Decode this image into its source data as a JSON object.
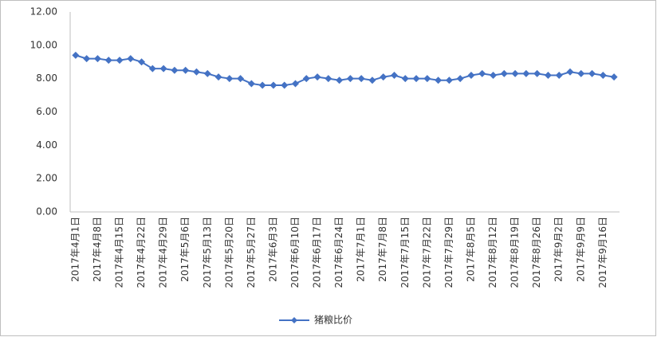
{
  "chart_data": {
    "type": "line",
    "categories": [
      "2017年4月1日",
      null,
      "2017年4月8日",
      null,
      "2017年4月15日",
      null,
      "2017年4月22日",
      null,
      "2017年4月29日",
      null,
      "2017年5月6日",
      null,
      "2017年5月13日",
      null,
      "2017年5月20日",
      null,
      "2017年5月27日",
      null,
      "2017年6月3日",
      null,
      "2017年6月10日",
      null,
      "2017年6月17日",
      null,
      "2017年6月24日",
      null,
      "2017年7月1日",
      null,
      "2017年7月8日",
      null,
      "2017年7月15日",
      null,
      "2017年7月22日",
      null,
      "2017年7月29日",
      null,
      "2017年8月5日",
      null,
      "2017年8月12日",
      null,
      "2017年8月19日",
      null,
      "2017年8月26日",
      null,
      "2017年9月2日",
      null,
      "2017年9月9日",
      null,
      "2017年9月16日",
      null
    ],
    "series": [
      {
        "name": "猪粮比价",
        "color": "#4472c4",
        "values": [
          9.4,
          9.2,
          9.2,
          9.1,
          9.1,
          9.2,
          9.0,
          8.6,
          8.6,
          8.5,
          8.5,
          8.4,
          8.3,
          8.1,
          8.0,
          8.0,
          7.7,
          7.6,
          7.6,
          7.6,
          7.7,
          8.0,
          8.1,
          8.0,
          7.9,
          8.0,
          8.0,
          7.9,
          8.1,
          8.2,
          8.0,
          8.0,
          8.0,
          7.9,
          7.9,
          8.0,
          8.2,
          8.3,
          8.2,
          8.3,
          8.3,
          8.3,
          8.3,
          8.2,
          8.2,
          8.4,
          8.3,
          8.3,
          8.2,
          8.1
        ]
      }
    ],
    "ylim": [
      0,
      12
    ],
    "yticks": [
      {
        "value": 0,
        "label": "0.00"
      },
      {
        "value": 2,
        "label": "2.00"
      },
      {
        "value": 4,
        "label": "4.00"
      },
      {
        "value": 6,
        "label": "6.00"
      },
      {
        "value": 8,
        "label": "8.00"
      },
      {
        "value": 10,
        "label": "10.00"
      },
      {
        "value": 12,
        "label": "12.00"
      }
    ],
    "grid": false,
    "legend": "bottom"
  }
}
